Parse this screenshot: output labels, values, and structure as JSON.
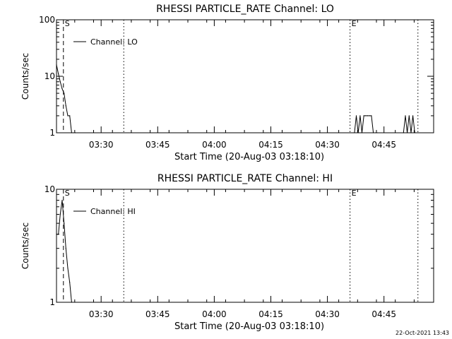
{
  "footer": {
    "timestamp": "22-Oct-2021 13:43"
  },
  "chart_data": [
    {
      "type": "line",
      "title": "RHESSI PARTICLE_RATE Channel: LO",
      "xlabel": "Start Time (20-Aug-03 03:18:10)",
      "ylabel": "Counts/sec",
      "yscale": "log",
      "ylim": [
        1,
        100
      ],
      "xlim_minutes_after_start": [
        0,
        100
      ],
      "x_ticks": [
        "03:30",
        "03:45",
        "04:00",
        "04:15",
        "04:30",
        "04:45"
      ],
      "y_ticks": [
        "1",
        "10",
        "100"
      ],
      "legend": {
        "label": "Channel: LO",
        "position": "top-left"
      },
      "markers": [
        {
          "label": "S",
          "time": "03:20",
          "style": "dashed"
        },
        {
          "label": "",
          "time": "03:36",
          "style": "dotted"
        },
        {
          "label": "E",
          "time": "04:36",
          "style": "dotted"
        },
        {
          "label": "",
          "time": "04:54",
          "style": "dotted"
        }
      ],
      "series": [
        {
          "name": "Channel: LO",
          "x": [
            "03:18:10",
            "03:18:40",
            "03:19:10",
            "03:19:40",
            "03:20:10",
            "03:20:40",
            "03:21:10",
            "03:21:40",
            "03:22:10",
            "03:22:40",
            "03:23:10",
            "04:37:10",
            "04:37:40",
            "04:38:10",
            "04:38:40",
            "04:39:10",
            "04:39:40",
            "04:40:10",
            "04:40:40",
            "04:41:10",
            "04:41:40",
            "04:42:10",
            "04:42:40",
            "04:43:10",
            "04:50:10",
            "04:50:40",
            "04:51:10",
            "04:51:40",
            "04:52:10",
            "04:52:40",
            "04:53:10"
          ],
          "values": [
            16,
            11,
            8,
            6,
            5,
            3,
            2,
            2,
            1,
            1,
            1,
            1,
            2,
            1,
            2,
            1,
            2,
            2,
            2,
            2,
            2,
            1,
            1,
            1,
            1,
            2,
            1,
            2,
            1,
            2,
            1
          ]
        }
      ]
    },
    {
      "type": "line",
      "title": "RHESSI PARTICLE_RATE Channel: HI",
      "xlabel": "Start Time (20-Aug-03 03:18:10)",
      "ylabel": "Counts/sec",
      "yscale": "log",
      "ylim": [
        1,
        10
      ],
      "xlim_minutes_after_start": [
        0,
        100
      ],
      "x_ticks": [
        "03:30",
        "03:45",
        "04:00",
        "04:15",
        "04:30",
        "04:45"
      ],
      "y_ticks": [
        "1",
        "10"
      ],
      "legend": {
        "label": "Channel: HI",
        "position": "top-left"
      },
      "markers": [
        {
          "label": "S",
          "time": "03:20",
          "style": "dashed"
        },
        {
          "label": "",
          "time": "03:36",
          "style": "dotted"
        },
        {
          "label": "E",
          "time": "04:36",
          "style": "dotted"
        },
        {
          "label": "",
          "time": "04:54",
          "style": "dotted"
        }
      ],
      "series": [
        {
          "name": "Channel: HI",
          "x": [
            "03:18:10",
            "03:18:40",
            "03:19:10",
            "03:19:40",
            "03:20:10",
            "03:20:40",
            "03:21:10",
            "03:21:40",
            "03:22:10"
          ],
          "values": [
            4,
            4,
            6,
            8,
            5,
            3,
            2,
            1.5,
            1
          ]
        }
      ]
    }
  ]
}
